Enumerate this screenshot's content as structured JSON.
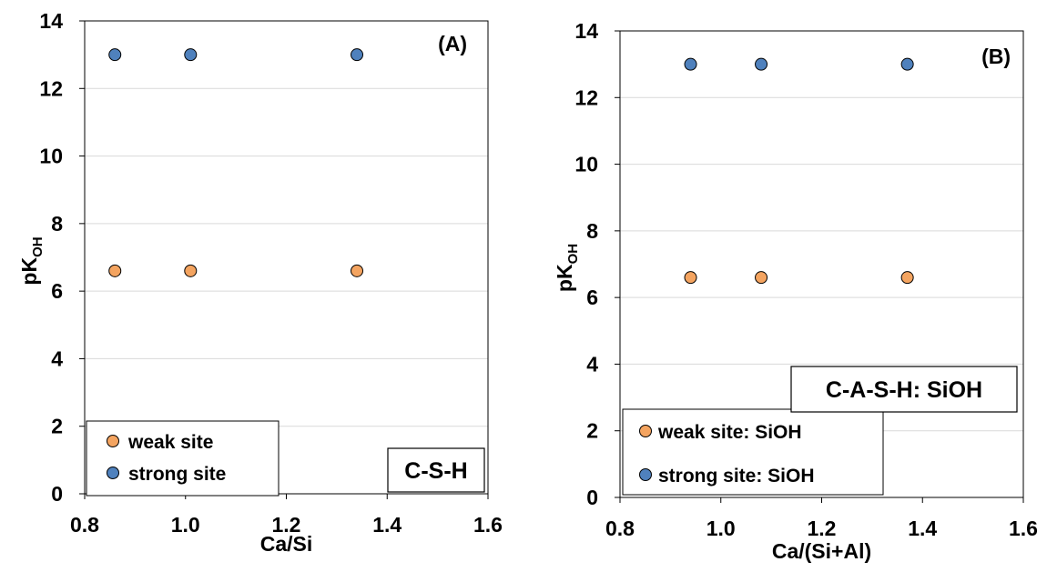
{
  "chart_data": [
    {
      "type": "scatter",
      "panel_label": "(A)",
      "xlabel": "Ca/Si",
      "ylabel_main": "pK",
      "ylabel_sub": "OH",
      "xlim": [
        0.8,
        1.6
      ],
      "ylim": [
        0,
        14
      ],
      "xticks": [
        "0.8",
        "1.0",
        "1.2",
        "1.4",
        "1.6"
      ],
      "yticks": [
        "0",
        "2",
        "4",
        "6",
        "8",
        "10",
        "12",
        "14"
      ],
      "grid": "horizontal",
      "legend_position": "bottom-left",
      "text_box": "C-S-H",
      "series": [
        {
          "name": "weak site",
          "color": "#F4A460",
          "x": [
            0.86,
            1.01,
            1.34
          ],
          "y": [
            6.6,
            6.6,
            6.6
          ]
        },
        {
          "name": "strong site",
          "color": "#4F81BD",
          "x": [
            0.86,
            1.01,
            1.34
          ],
          "y": [
            13.0,
            13.0,
            13.0
          ]
        }
      ]
    },
    {
      "type": "scatter",
      "panel_label": "(B)",
      "xlabel": "Ca/(Si+Al)",
      "ylabel_main": "pK",
      "ylabel_sub": "OH",
      "xlim": [
        0.8,
        1.6
      ],
      "ylim": [
        0,
        14
      ],
      "xticks": [
        "0.8",
        "1.0",
        "1.2",
        "1.4",
        "1.6"
      ],
      "yticks": [
        "0",
        "2",
        "4",
        "6",
        "8",
        "10",
        "12",
        "14"
      ],
      "grid": "horizontal",
      "legend_position": "bottom-left",
      "text_box": "C-A-S-H: SiOH",
      "series": [
        {
          "name": "weak site: SiOH",
          "color": "#F4A460",
          "x": [
            0.94,
            1.08,
            1.37
          ],
          "y": [
            6.6,
            6.6,
            6.6
          ]
        },
        {
          "name": "strong site: SiOH",
          "color": "#4F81BD",
          "x": [
            0.94,
            1.08,
            1.37
          ],
          "y": [
            13.0,
            13.0,
            13.0
          ]
        }
      ]
    }
  ]
}
